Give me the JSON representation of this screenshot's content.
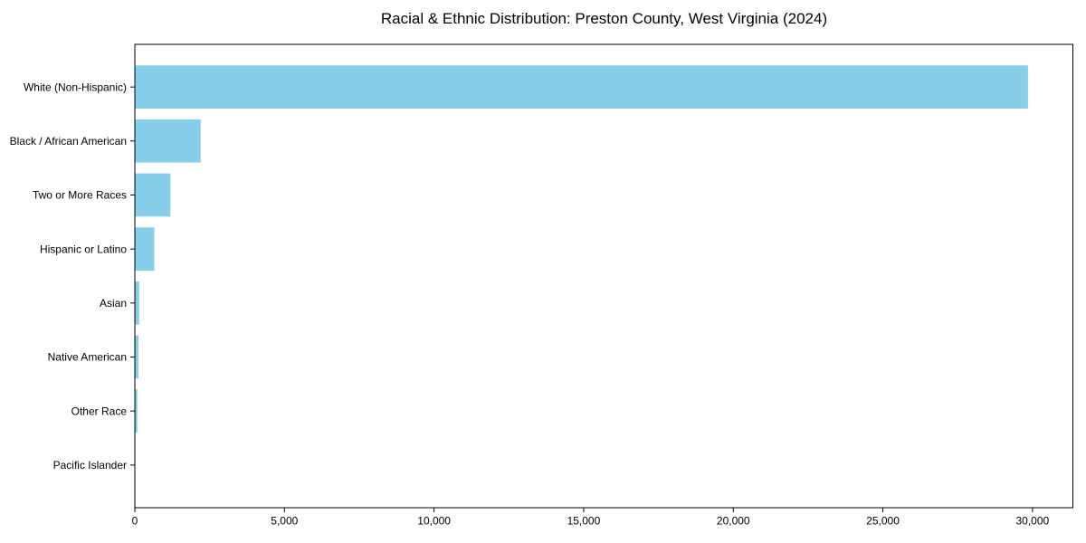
{
  "chart_data": {
    "type": "bar",
    "orientation": "horizontal",
    "title": "Racial & Ethnic Distribution: Preston County, West Virginia (2024)",
    "categories": [
      "White (Non-Hispanic)",
      "Black / African American",
      "Two or More Races",
      "Hispanic or Latino",
      "Asian",
      "Native American",
      "Other Race",
      "Pacific Islander"
    ],
    "values": [
      29850,
      2200,
      1190,
      650,
      145,
      120,
      85,
      15
    ],
    "xlabel": "",
    "ylabel": "",
    "xlim": [
      0,
      31350
    ],
    "x_ticks": [
      0,
      5000,
      10000,
      15000,
      20000,
      25000,
      30000
    ],
    "x_tick_labels": [
      "0",
      "5,000",
      "10,000",
      "15,000",
      "20,000",
      "25,000",
      "30,000"
    ],
    "bar_color": "#87CEEB",
    "axis_color": "#000000",
    "text_color": "#000000",
    "grid": false,
    "legend": null
  }
}
